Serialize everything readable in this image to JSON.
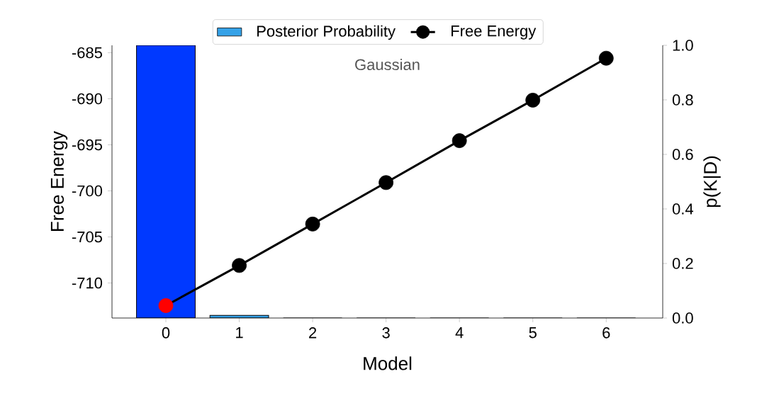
{
  "chart_data": {
    "type": "bar",
    "annotations": [
      "Gaussian"
    ],
    "xlabel": "Model",
    "ylabel": "Free Energy",
    "y2label": "p(K|D)",
    "categories": [
      "0",
      "1",
      "2",
      "3",
      "4",
      "5",
      "6"
    ],
    "series": [
      {
        "name": "Posterior Probability",
        "axis": "y2",
        "color": "#35a2e8",
        "colors": [
          "#0039ff",
          "#35a2e8",
          "#35a2e8",
          "#35a2e8",
          "#35a2e8",
          "#35a2e8",
          "#35a2e8"
        ],
        "values": [
          1.0,
          0.01,
          0,
          0,
          0,
          0,
          0
        ]
      },
      {
        "name": "Free Energy",
        "type": "line",
        "color": "#000000",
        "colors": [
          "#ff0000",
          "#000000",
          "#000000",
          "#000000",
          "#000000",
          "#000000",
          "#000000"
        ],
        "values": [
          -712.45,
          -708.1,
          -703.6,
          -699.1,
          -694.55,
          -690.15,
          -685.6
        ]
      }
    ],
    "ylim": [
      -713.8,
      -684.2
    ],
    "yticks": [
      -710,
      -705,
      -700,
      -695,
      -690,
      -685
    ],
    "y2lim": [
      0,
      1
    ],
    "y2ticks": [
      {
        "value": 0,
        "label": "0.0"
      },
      {
        "value": 0.2,
        "label": "0.2"
      },
      {
        "value": 0.4,
        "label": "0.4"
      },
      {
        "value": 0.6,
        "label": "0.6"
      },
      {
        "value": 0.8,
        "label": "0.8"
      },
      {
        "value": 1.0,
        "label": "1.0"
      }
    ],
    "legend": "top",
    "grid": false,
    "marker": "circle",
    "line_style": "solid"
  }
}
